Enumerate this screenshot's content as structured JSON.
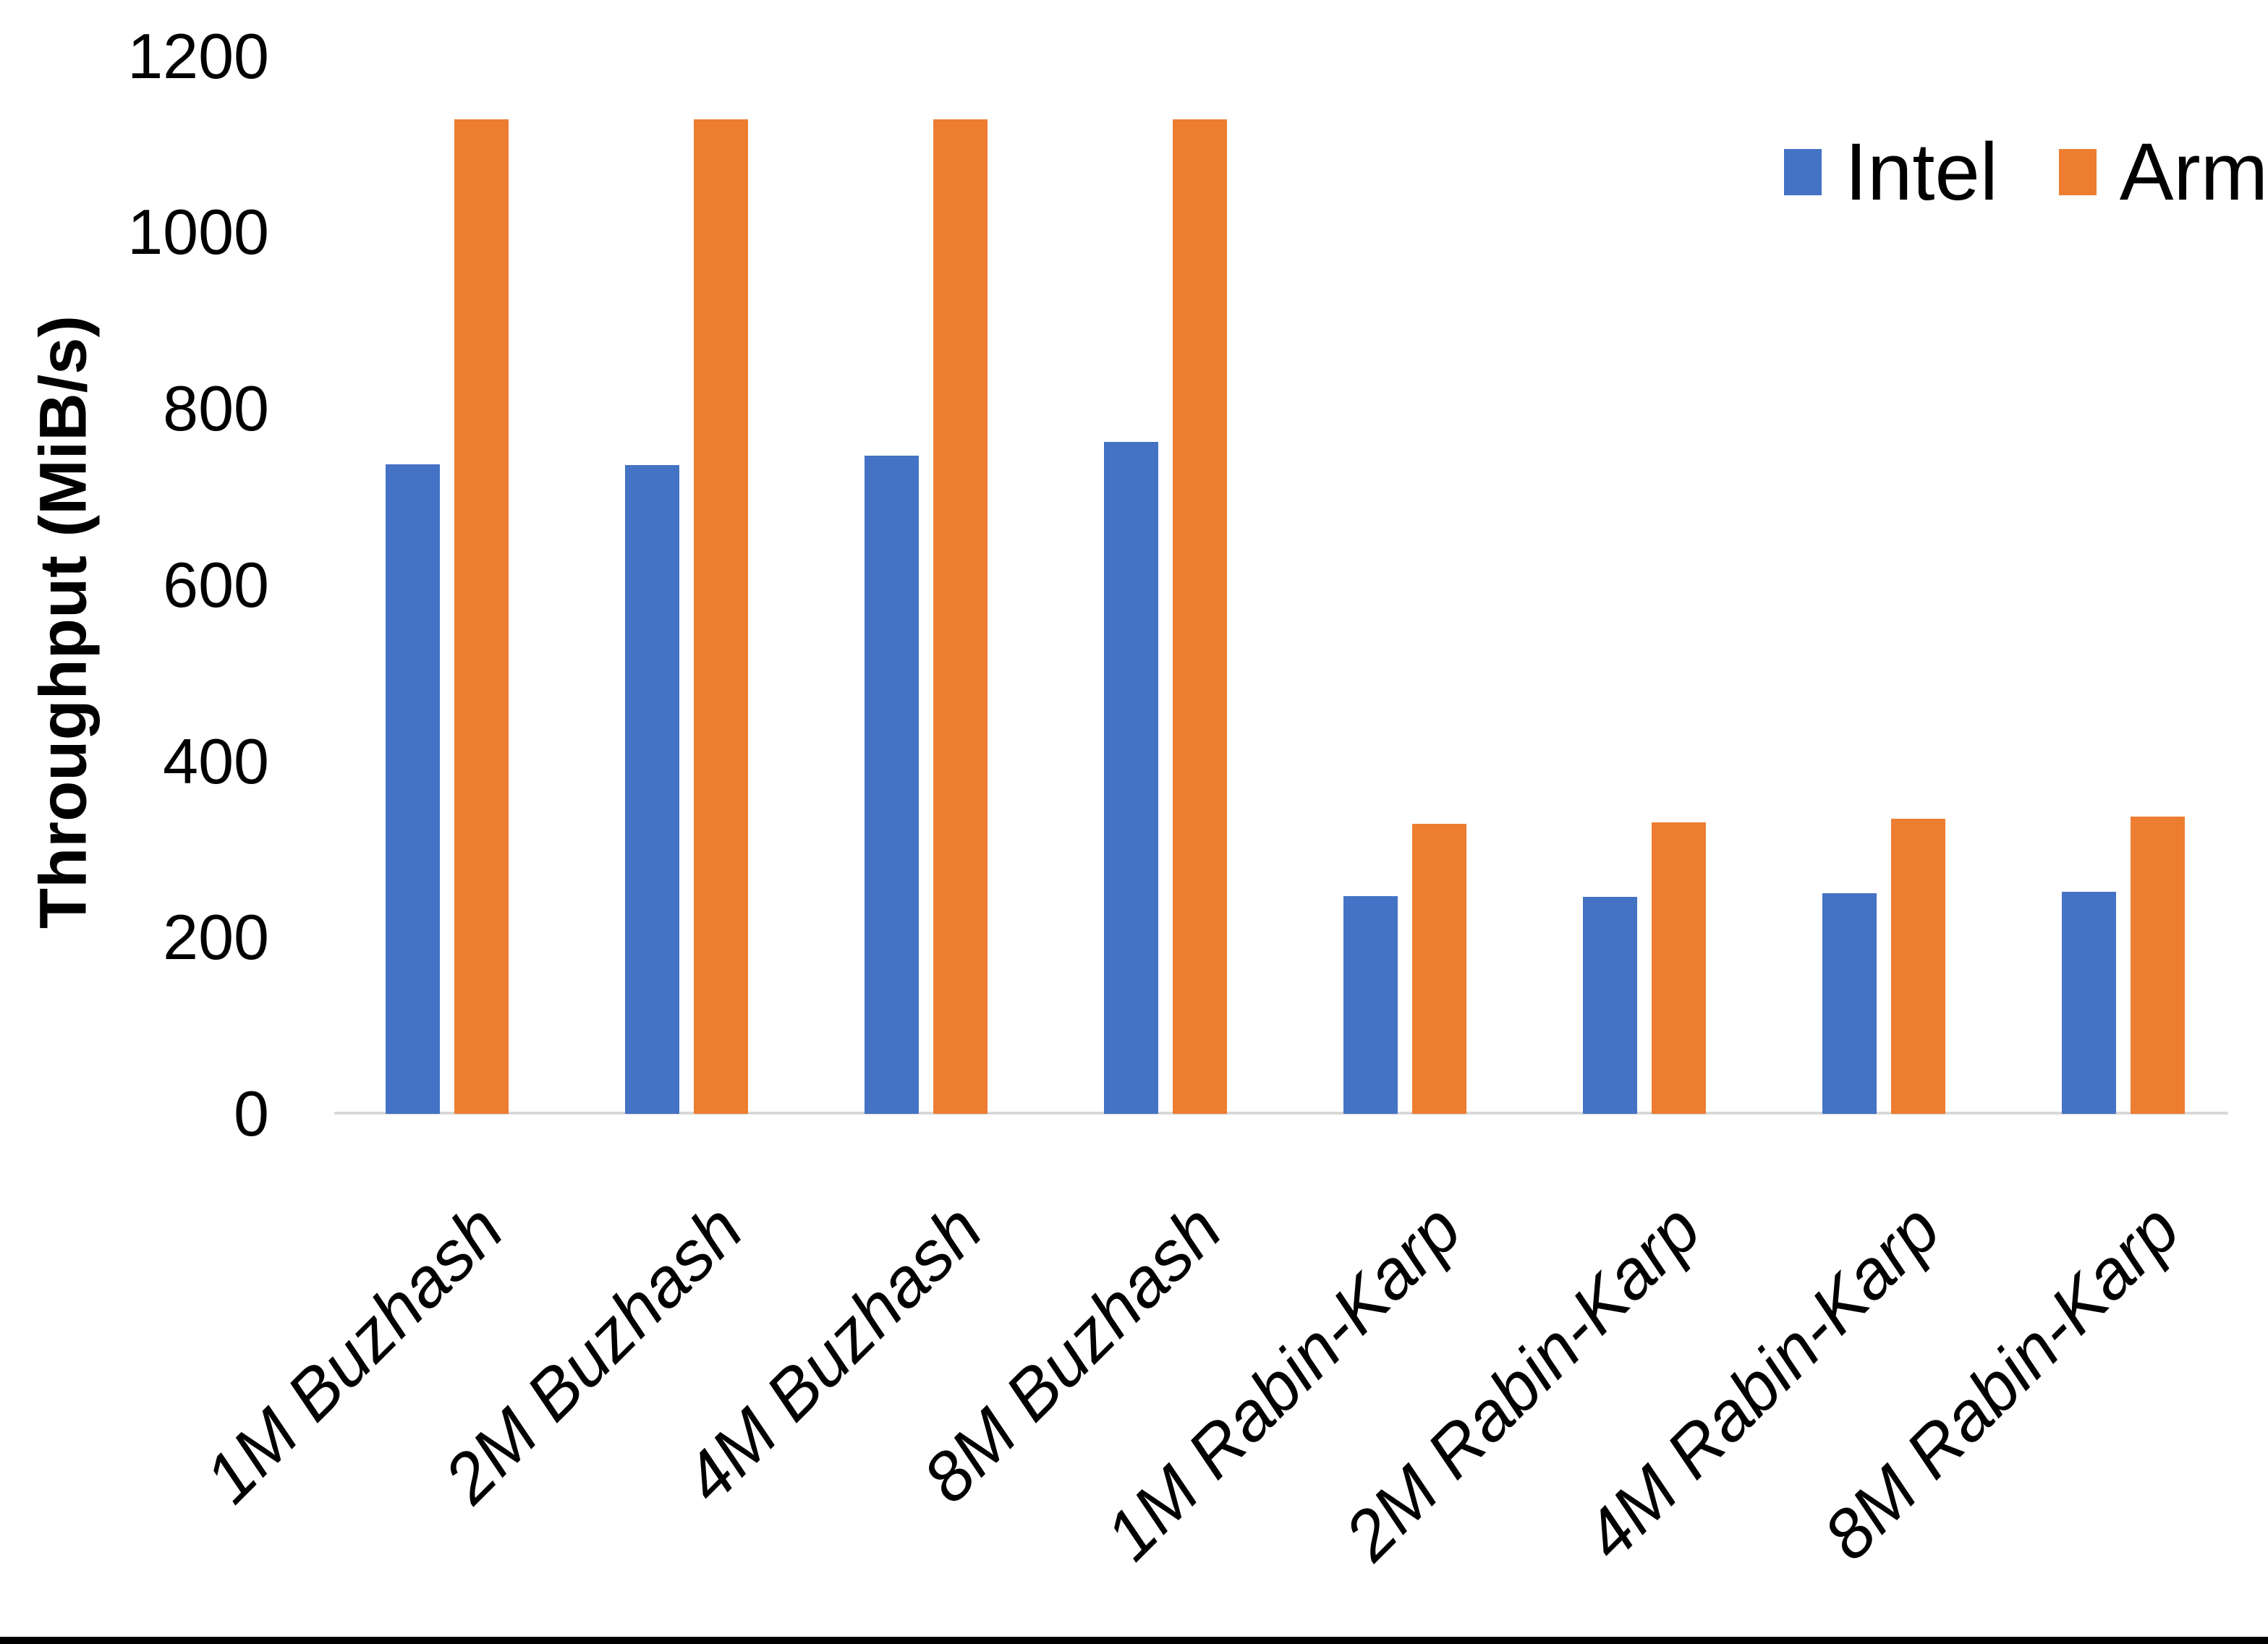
{
  "chart_data": {
    "type": "bar",
    "title": "",
    "ylabel": "Throughput (MiB/s)",
    "xlabel": "",
    "categories": [
      "1M Buzhash",
      "2M Buzhash",
      "4M Buzhash",
      "8M Buzhash",
      "1M Rabin-Karp",
      "2M Rabin-Karp",
      "4M Rabin-Karp",
      "8M Rabin-Karp"
    ],
    "series": [
      {
        "name": "Intel",
        "color": "#4472C4",
        "values": [
          737,
          736,
          747,
          762,
          247,
          246,
          250,
          252
        ]
      },
      {
        "name": "Arm",
        "color": "#ED7D31",
        "values": [
          1128,
          1128,
          1128,
          1128,
          329,
          331,
          335,
          337
        ]
      }
    ],
    "ylim": [
      0,
      1200
    ],
    "yticks": [
      0,
      200,
      400,
      600,
      800,
      1000,
      1200
    ],
    "grid": false,
    "legend_position": "top-right",
    "axis_line_color": "#D9D9D9",
    "bottom_border_color": "#000000"
  }
}
